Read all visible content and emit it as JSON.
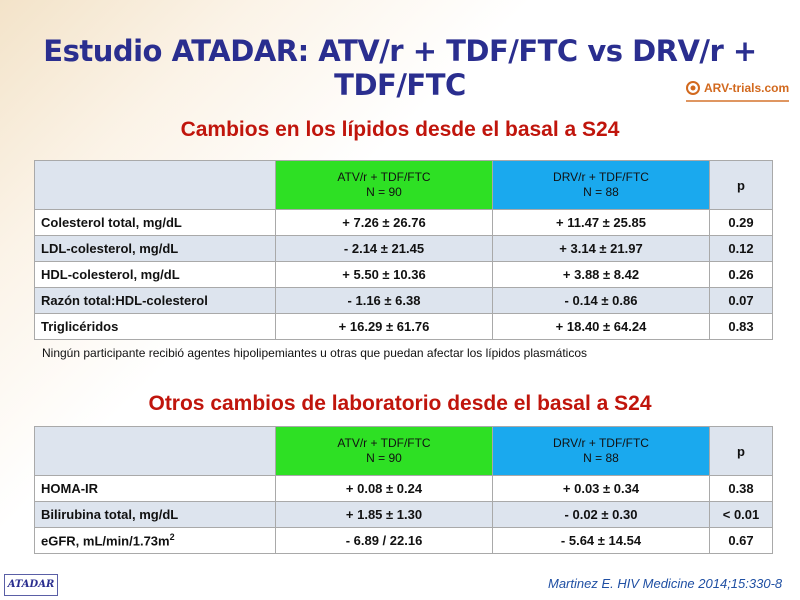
{
  "title": "Estudio ATADAR: ATV/r + TDF/FTC vs DRV/r + TDF/FTC",
  "logo": {
    "text": "ARV-trials.com"
  },
  "lipids": {
    "section_title": "Cambios en los lípidos desde el basal a S24",
    "header": {
      "arm1_line1": "ATV/r + TDF/FTC",
      "arm1_line2": "N = 90",
      "arm2_line1": "DRV/r + TDF/FTC",
      "arm2_line2": "N = 88",
      "p": "p"
    },
    "rows": [
      {
        "label": "Colesterol total, mg/dL",
        "arm1": "+ 7.26 ± 26.76",
        "arm2": "+ 11.47 ± 25.85",
        "p": "0.29"
      },
      {
        "label": "LDL-colesterol, mg/dL",
        "arm1": "- 2.14 ± 21.45",
        "arm2": "+ 3.14 ± 21.97",
        "p": "0.12"
      },
      {
        "label": "HDL-colesterol, mg/dL",
        "arm1": "+ 5.50 ± 10.36",
        "arm2": "+ 3.88 ± 8.42",
        "p": "0.26"
      },
      {
        "label": "Razón total:HDL-colesterol",
        "arm1": "- 1.16 ± 6.38",
        "arm2": "- 0.14 ± 0.86",
        "p": "0.07"
      },
      {
        "label": "Triglicéridos",
        "arm1": "+ 16.29 ± 61.76",
        "arm2": "+ 18.40 ± 64.24",
        "p": "0.83"
      }
    ],
    "note": "Ningún participante recibió agentes hipolipemiantes u otras que puedan afectar los lípidos plasmáticos"
  },
  "lab": {
    "section_title": "Otros cambios de laboratorio desde el basal a S24",
    "header": {
      "arm1_line1": "ATV/r + TDF/FTC",
      "arm1_line2": "N = 90",
      "arm2_line1": "DRV/r + TDF/FTC",
      "arm2_line2": "N = 88",
      "p": "p"
    },
    "rows": [
      {
        "label": "HOMA-IR",
        "arm1": "+ 0.08 ± 0.24",
        "arm2": "+ 0.03 ± 0.34",
        "p": "0.38"
      },
      {
        "label": "Bilirubina total, mg/dL",
        "arm1": "+ 1.85 ± 1.30",
        "arm2": "- 0.02 ± 0.30",
        "p": "< 0.01"
      },
      {
        "label": "eGFR, mL/min/1.73m",
        "label_sup": "2",
        "arm1": "- 6.89 / 22.16",
        "arm2": "- 5.64 ± 14.54",
        "p": "0.67"
      }
    ]
  },
  "badge": "ATADAR",
  "citation": "Martinez E. HIV Medicine 2014;15:330-8",
  "colors": {
    "title": "#2a2e8f",
    "section": "#c0150c",
    "arm1": "#2ee024",
    "arm2": "#1aa9ee",
    "row_alt": "#dde4ee"
  }
}
